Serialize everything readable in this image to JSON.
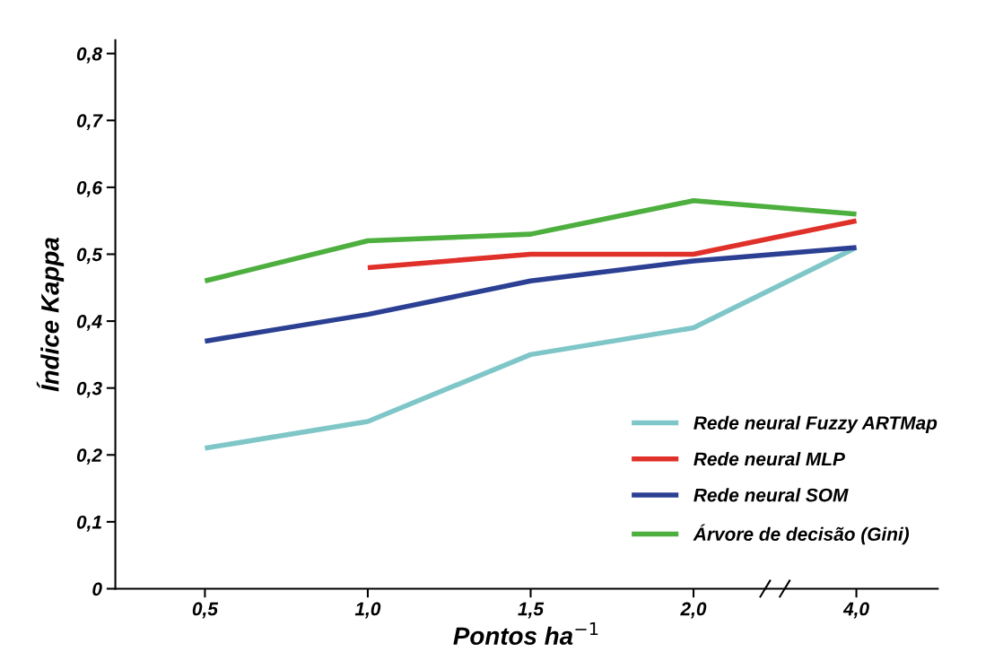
{
  "chart_data": {
    "type": "line",
    "xlabel": "Pontos ha$^{−1}$",
    "ylabel": "Índice Kappa",
    "categories": [
      "0,5",
      "1,0",
      "1,5",
      "2,0",
      "4,0"
    ],
    "series": [
      {
        "name": "Rede neural Fuzzy ARTMap",
        "color": "#7fc6c8",
        "values": [
          0.21,
          0.25,
          0.35,
          0.39,
          0.51
        ]
      },
      {
        "name": "Rede neural MLP",
        "color": "#e0302a",
        "values": [
          null,
          0.48,
          0.5,
          0.5,
          0.55
        ]
      },
      {
        "name": "Rede neural SOM",
        "color": "#2b3f93",
        "values": [
          0.37,
          0.41,
          0.46,
          0.49,
          0.51
        ]
      },
      {
        "name": "Árvore de decisão (Gini)",
        "color": "#4daf3e",
        "values": [
          0.46,
          0.52,
          0.53,
          0.58,
          0.56
        ]
      }
    ],
    "ylim": [
      0,
      0.82
    ],
    "yticks": [
      {
        "value": 0,
        "label": "0"
      },
      {
        "value": 0.1,
        "label": "0,1"
      },
      {
        "value": 0.2,
        "label": "0,2"
      },
      {
        "value": 0.3,
        "label": "0,3"
      },
      {
        "value": 0.4,
        "label": "0,4"
      },
      {
        "value": 0.5,
        "label": "0,5"
      },
      {
        "value": 0.6,
        "label": "0,6"
      },
      {
        "value": 0.7,
        "label": "0,7"
      },
      {
        "value": 0.8,
        "label": "0,8"
      }
    ],
    "grid": false,
    "legend": "bottom right",
    "marker": "none",
    "line_style": "solid"
  }
}
